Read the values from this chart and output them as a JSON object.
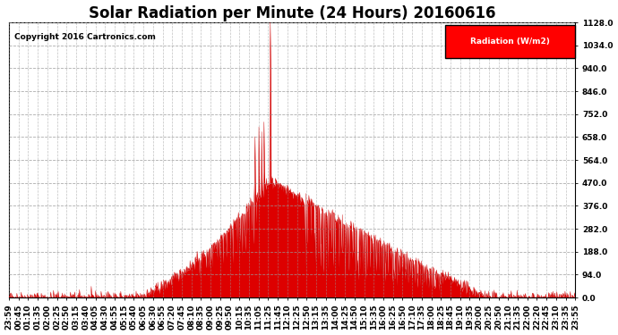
{
  "title": "Solar Radiation per Minute (24 Hours) 20160616",
  "copyright_text": "Copyright 2016 Cartronics.com",
  "legend_label": "Radiation (W/m2)",
  "bg_color": "#ffffff",
  "plot_bg_color": "#ffffff",
  "fill_color": "#dd0000",
  "line_color": "#cc0000",
  "grid_color": "#999999",
  "title_fontsize": 12,
  "tick_fontsize": 6.5,
  "ylim": [
    0.0,
    1128.0
  ],
  "yticks": [
    0.0,
    94.0,
    188.0,
    282.0,
    376.0,
    470.0,
    564.0,
    658.0,
    752.0,
    846.0,
    940.0,
    1034.0,
    1128.0
  ],
  "xtick_labels": [
    "23:59",
    "00:45",
    "01:10",
    "01:35",
    "02:00",
    "02:25",
    "02:50",
    "03:15",
    "03:40",
    "04:05",
    "04:30",
    "04:55",
    "05:15",
    "05:40",
    "06:05",
    "06:30",
    "06:55",
    "07:20",
    "07:45",
    "08:10",
    "08:35",
    "09:00",
    "09:25",
    "09:50",
    "10:15",
    "10:35",
    "11:05",
    "11:25",
    "11:45",
    "12:10",
    "12:25",
    "12:50",
    "13:15",
    "13:35",
    "14:00",
    "14:25",
    "14:50",
    "15:10",
    "15:35",
    "16:00",
    "16:25",
    "16:50",
    "17:10",
    "17:35",
    "18:00",
    "18:25",
    "18:45",
    "19:10",
    "19:35",
    "20:00",
    "20:25",
    "20:50",
    "21:10",
    "21:35",
    "22:00",
    "22:20",
    "22:45",
    "23:10",
    "23:35",
    "23:55"
  ]
}
